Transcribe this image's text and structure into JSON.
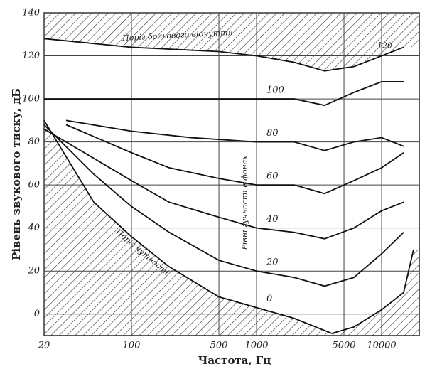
{
  "chart_data": {
    "type": "line",
    "x_label": "Частота, Гц",
    "y_label": "Рівень звукового тиску, дБ",
    "xlim": [
      20,
      20000
    ],
    "ylim": [
      -10,
      140
    ],
    "log_x": true,
    "grid": true,
    "xticks": [
      20,
      100,
      500,
      1000,
      5000,
      10000
    ],
    "yticks": [
      0,
      20,
      40,
      60,
      80,
      100,
      120,
      140
    ],
    "annotations": [
      "Поріг больового відчуття",
      "Поріг чутності",
      "Рівні гучності в фонах"
    ],
    "series": [
      {
        "name": "0",
        "color": "#111",
        "x": [
          20,
          50,
          100,
          200,
          500,
          1000,
          2000,
          4000,
          6000,
          10000,
          15000,
          18000
        ],
        "values": [
          90,
          52,
          36,
          22,
          8,
          3,
          -2,
          -9,
          -6,
          2,
          10,
          30
        ]
      },
      {
        "name": "20",
        "color": "#111",
        "x": [
          20,
          50,
          100,
          200,
          500,
          1000,
          2000,
          3500,
          6000,
          10000,
          15000
        ],
        "values": [
          88,
          65,
          50,
          38,
          25,
          20,
          17,
          13,
          17,
          28,
          38
        ]
      },
      {
        "name": "40",
        "color": "#111",
        "x": [
          20,
          30,
          100,
          200,
          500,
          1000,
          2000,
          3500,
          6000,
          10000,
          15000
        ],
        "values": [
          86,
          80,
          62,
          52,
          45,
          40,
          38,
          35,
          40,
          48,
          52
        ]
      },
      {
        "name": "60",
        "color": "#111",
        "x": [
          30,
          100,
          200,
          500,
          1000,
          2000,
          3500,
          6000,
          10000,
          15000
        ],
        "values": [
          88,
          75,
          68,
          63,
          60,
          60,
          56,
          62,
          68,
          75
        ]
      },
      {
        "name": "80",
        "color": "#111",
        "x": [
          30,
          100,
          300,
          1000,
          2000,
          3500,
          6000,
          10000,
          15000
        ],
        "values": [
          90,
          85,
          82,
          80,
          80,
          76,
          80,
          82,
          78
        ]
      },
      {
        "name": "100",
        "color": "#111",
        "x": [
          20,
          100,
          300,
          1000,
          2000,
          3500,
          6000,
          10000,
          15000
        ],
        "values": [
          100,
          100,
          100,
          100,
          100,
          97,
          103,
          108,
          108
        ]
      },
      {
        "name": "120",
        "color": "#111",
        "x": [
          20,
          100,
          500,
          1000,
          2000,
          3500,
          6000,
          10000,
          15000
        ],
        "values": [
          128,
          124,
          122,
          120,
          117,
          113,
          115,
          120,
          124
        ]
      }
    ]
  }
}
